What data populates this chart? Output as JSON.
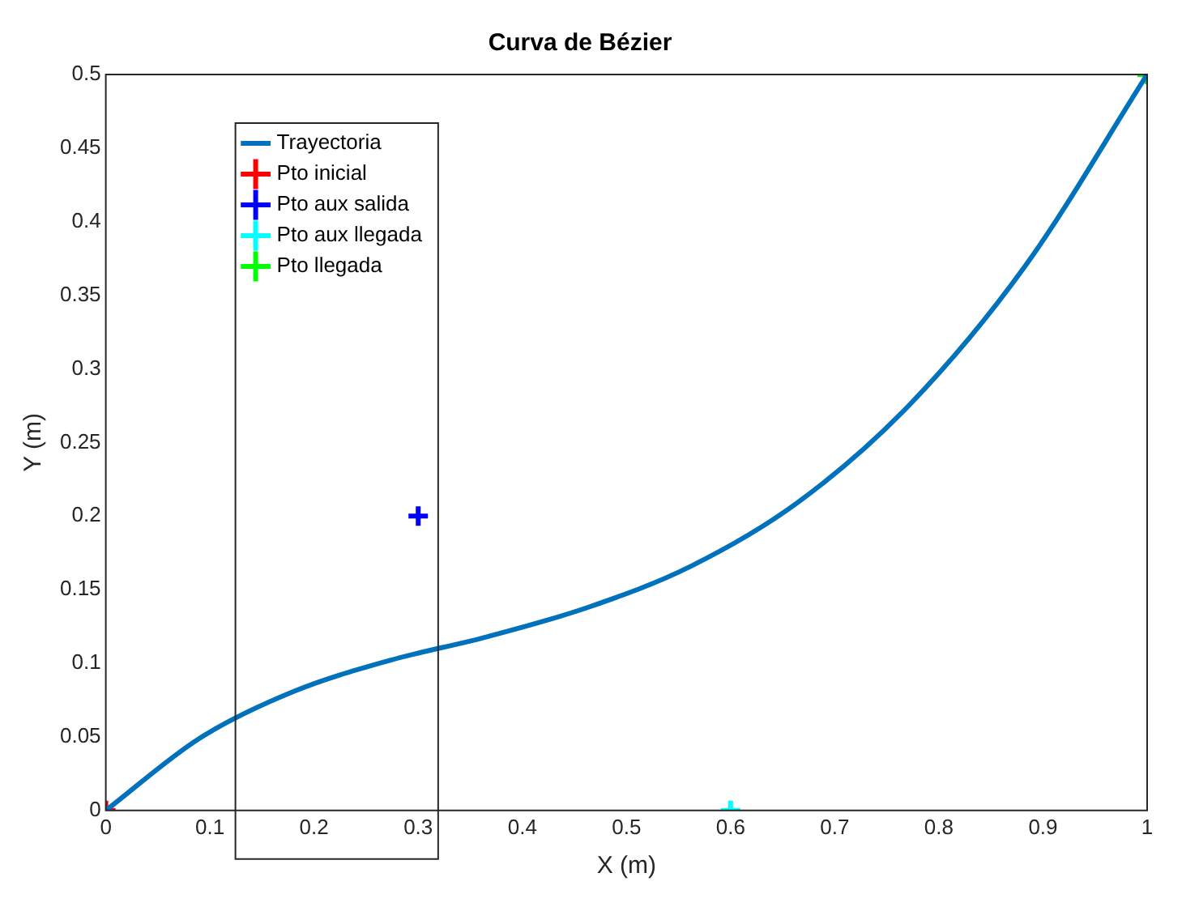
{
  "chart_data": {
    "type": "line",
    "title": "Curva de Bézier",
    "xlabel": "X (m)",
    "ylabel": "Y (m)",
    "xlim": [
      0,
      1
    ],
    "xticks": [
      0,
      0.1,
      0.2,
      0.3,
      0.4,
      0.5,
      0.6,
      0.7,
      0.8,
      0.9,
      1
    ],
    "ylim": [
      0,
      0.5
    ],
    "yticks": [
      0,
      0.05,
      0.1,
      0.15,
      0.2,
      0.25,
      0.3,
      0.35,
      0.4,
      0.45,
      0.5
    ],
    "grid": false,
    "legend": "top left",
    "series": [
      {
        "name": "Trayectoria",
        "color": "#0072bd",
        "marker": "none",
        "x": [
          0,
          0.09,
          0.181,
          0.273,
          0.366,
          0.463,
          0.562,
          0.664,
          0.771,
          0.883,
          1
        ],
        "values": [
          0,
          0.049,
          0.081,
          0.102,
          0.118,
          0.138,
          0.166,
          0.209,
          0.275,
          0.37,
          0.5
        ]
      },
      {
        "name": "Pto inicial",
        "type": "scatter",
        "color": "#ff0000",
        "marker": "cross",
        "x": [
          0
        ],
        "values": [
          0
        ]
      },
      {
        "name": "Pto aux salida",
        "type": "scatter",
        "color": "#0000ff",
        "marker": "cross",
        "x": [
          0.3
        ],
        "values": [
          0.2
        ]
      },
      {
        "name": "Pto aux llegada",
        "type": "scatter",
        "color": "#00ffff",
        "marker": "cross",
        "x": [
          0.6
        ],
        "values": [
          0
        ]
      },
      {
        "name": "Pto llegada",
        "type": "scatter",
        "color": "#00ff00",
        "marker": "cross",
        "x": [
          1
        ],
        "values": [
          0.5
        ]
      }
    ]
  }
}
